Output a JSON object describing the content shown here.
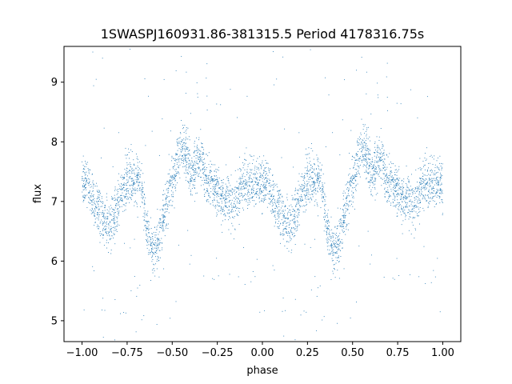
{
  "chart_data": {
    "type": "scatter",
    "title": "1SWASPJ160931.86-381315.5 Period 4178316.75s",
    "xlabel": "phase",
    "ylabel": "flux",
    "xlim": [
      -1.1,
      1.1
    ],
    "ylim": [
      4.65,
      9.6
    ],
    "xticks": [
      -1.0,
      -0.75,
      -0.5,
      -0.25,
      0.0,
      0.25,
      0.5,
      0.75,
      1.0
    ],
    "xtick_labels": [
      "−1.00",
      "−0.75",
      "−0.50",
      "−0.25",
      "0.00",
      "0.25",
      "0.50",
      "0.75",
      "1.00"
    ],
    "yticks": [
      5,
      6,
      7,
      8,
      9
    ],
    "ytick_labels": [
      "5",
      "6",
      "7",
      "8",
      "9"
    ],
    "grid": false,
    "marker_color": "#1f77b4",
    "series": [
      {
        "phase_profile": [
          [
            0.0,
            7.3
          ],
          [
            0.04,
            7.25
          ],
          [
            0.07,
            6.9
          ],
          [
            0.1,
            6.8
          ],
          [
            0.14,
            6.6
          ],
          [
            0.17,
            6.6
          ],
          [
            0.2,
            7.0
          ],
          [
            0.23,
            7.25
          ],
          [
            0.26,
            7.4
          ],
          [
            0.3,
            7.35
          ],
          [
            0.33,
            7.3
          ],
          [
            0.36,
            6.5
          ],
          [
            0.39,
            6.2
          ],
          [
            0.42,
            6.25
          ],
          [
            0.45,
            6.7
          ],
          [
            0.48,
            7.2
          ],
          [
            0.51,
            7.4
          ],
          [
            0.54,
            7.85
          ],
          [
            0.57,
            7.9
          ],
          [
            0.6,
            7.5
          ],
          [
            0.63,
            7.6
          ],
          [
            0.66,
            7.75
          ],
          [
            0.69,
            7.35
          ],
          [
            0.72,
            7.3
          ],
          [
            0.75,
            7.2
          ],
          [
            0.78,
            7.0
          ],
          [
            0.81,
            7.1
          ],
          [
            0.84,
            6.9
          ],
          [
            0.87,
            7.2
          ],
          [
            0.9,
            7.35
          ],
          [
            0.93,
            7.3
          ],
          [
            0.96,
            7.3
          ],
          [
            1.0,
            7.3
          ]
        ],
        "scatter_width": 0.3,
        "points_per_cycle": 2200
      }
    ]
  }
}
